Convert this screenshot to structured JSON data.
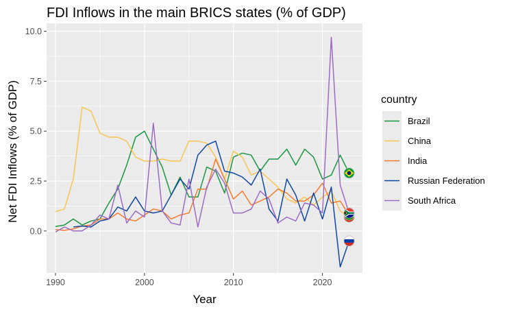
{
  "chart_data": {
    "type": "line",
    "title": "FDI Inflows in the main BRICS states (% of GDP)",
    "xlabel": "Year",
    "ylabel": "Net FDI Inflows (% of GDP)",
    "xlim": [
      1989,
      2024.5
    ],
    "ylim": [
      -2.1,
      10.4
    ],
    "x_ticks": [
      1990,
      2000,
      2010,
      2020
    ],
    "y_ticks": [
      0,
      2.5,
      5,
      7.5,
      10
    ],
    "y_tick_labels": [
      "0.0",
      "2.5",
      "5.0",
      "7.5",
      "10.0"
    ],
    "grid": true,
    "legend_title": "country",
    "legend_position": "right",
    "series": [
      {
        "name": "Brazil",
        "color": "#1a9641",
        "flag_icon": "brazil-flag-icon",
        "x": [
          1990,
          1991,
          1992,
          1993,
          1994,
          1995,
          1996,
          1997,
          1998,
          1999,
          2000,
          2001,
          2002,
          2003,
          2004,
          2005,
          2006,
          2007,
          2008,
          2009,
          2010,
          2011,
          2012,
          2013,
          2014,
          2015,
          2016,
          2017,
          2018,
          2019,
          2020,
          2021,
          2022,
          2023
        ],
        "values": [
          0.22,
          0.3,
          0.6,
          0.3,
          0.5,
          0.6,
          1.4,
          2.1,
          3.3,
          4.7,
          5.0,
          4.1,
          3.2,
          1.8,
          2.7,
          1.7,
          1.7,
          3.2,
          3.0,
          1.9,
          3.7,
          3.9,
          3.8,
          3.0,
          3.6,
          3.6,
          4.1,
          3.3,
          4.1,
          3.7,
          2.6,
          2.8,
          3.8,
          2.9
        ]
      },
      {
        "name": "China",
        "color": "#f8c54e",
        "flag_icon": "china-flag-icon",
        "x": [
          1990,
          1991,
          1992,
          1993,
          1994,
          1995,
          1996,
          1997,
          1998,
          1999,
          2000,
          2001,
          2002,
          2003,
          2004,
          2005,
          2006,
          2007,
          2008,
          2009,
          2010,
          2011,
          2012,
          2013,
          2014,
          2015,
          2016,
          2017,
          2018,
          2019,
          2020,
          2021,
          2022,
          2023
        ],
        "values": [
          0.97,
          1.1,
          2.6,
          6.2,
          6.0,
          4.9,
          4.7,
          4.7,
          4.5,
          3.7,
          3.5,
          3.5,
          3.6,
          3.5,
          3.5,
          4.5,
          4.5,
          4.4,
          3.7,
          2.6,
          4.0,
          3.7,
          2.8,
          3.0,
          2.6,
          2.2,
          1.6,
          1.4,
          1.7,
          1.3,
          1.7,
          2.0,
          1.0,
          0.7
        ]
      },
      {
        "name": "India",
        "color": "#f57a2e",
        "flag_icon": "india-flag-icon",
        "x": [
          1990,
          1991,
          1992,
          1993,
          1994,
          1995,
          1996,
          1997,
          1998,
          1999,
          2000,
          2001,
          2002,
          2003,
          2004,
          2005,
          2006,
          2007,
          2008,
          2009,
          2010,
          2011,
          2012,
          2013,
          2014,
          2015,
          2016,
          2017,
          2018,
          2019,
          2020,
          2021,
          2022,
          2023
        ],
        "values": [
          0.07,
          0.03,
          0.1,
          0.25,
          0.3,
          0.6,
          0.6,
          0.9,
          0.6,
          0.5,
          0.8,
          1.1,
          1.0,
          0.6,
          0.8,
          0.9,
          2.1,
          2.1,
          3.6,
          2.6,
          1.6,
          2.0,
          1.3,
          1.5,
          1.7,
          2.1,
          1.9,
          1.5,
          1.5,
          1.8,
          2.4,
          1.4,
          1.5,
          0.8
        ]
      },
      {
        "name": "Russian Federation",
        "color": "#0d47a1",
        "flag_icon": "russia-flag-icon",
        "x": [
          1992,
          1993,
          1994,
          1995,
          1996,
          1997,
          1998,
          1999,
          2000,
          2001,
          2002,
          2003,
          2004,
          2005,
          2006,
          2007,
          2008,
          2009,
          2010,
          2011,
          2012,
          2013,
          2014,
          2015,
          2016,
          2017,
          2018,
          2019,
          2020,
          2021,
          2022,
          2023
        ],
        "values": [
          0.2,
          0.25,
          0.2,
          0.5,
          0.6,
          1.2,
          1.0,
          1.7,
          1.0,
          0.9,
          1.0,
          1.8,
          2.6,
          2.1,
          3.8,
          4.3,
          4.5,
          3.0,
          2.9,
          2.7,
          2.3,
          3.1,
          1.1,
          0.5,
          2.6,
          1.8,
          0.5,
          1.9,
          0.6,
          2.2,
          -1.8,
          -0.5
        ]
      },
      {
        "name": "South Africa",
        "color": "#9b6bc4",
        "flag_icon": "south-africa-flag-icon",
        "x": [
          1990,
          1991,
          1992,
          1993,
          1994,
          1995,
          1996,
          1997,
          1998,
          1999,
          2000,
          2001,
          2002,
          2003,
          2004,
          2005,
          2006,
          2007,
          2008,
          2009,
          2010,
          2011,
          2012,
          2013,
          2014,
          2015,
          2016,
          2017,
          2018,
          2019,
          2020,
          2021,
          2022,
          2023
        ],
        "values": [
          -0.05,
          0.2,
          0.0,
          0.0,
          0.3,
          0.8,
          0.6,
          2.3,
          0.4,
          1.0,
          0.7,
          5.4,
          1.0,
          0.4,
          0.3,
          2.6,
          0.2,
          2.2,
          3.1,
          2.4,
          0.9,
          0.9,
          1.1,
          2.0,
          1.6,
          0.4,
          0.7,
          0.5,
          1.4,
          1.3,
          0.9,
          9.7,
          2.3,
          0.9
        ]
      }
    ]
  }
}
